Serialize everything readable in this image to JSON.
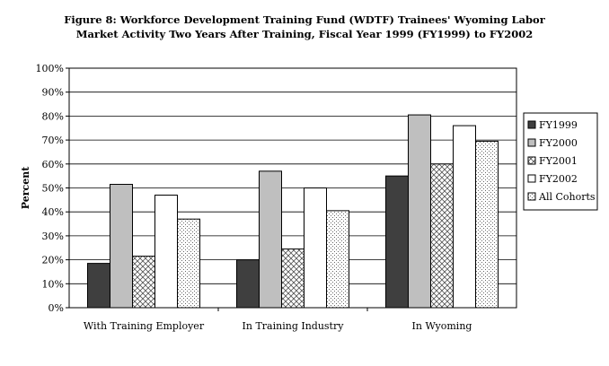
{
  "chart_data": {
    "type": "bar",
    "title_lines": [
      "Figure 8: Workforce Development Training Fund (WDTF) Trainees' Wyoming Labor",
      "Market Activity Two Years After Training, Fiscal Year 1999 (FY1999) to FY2002"
    ],
    "ylabel": "Percent",
    "xlabel": "",
    "ylim": [
      0,
      100
    ],
    "yticks": [
      "0%",
      "10%",
      "20%",
      "30%",
      "40%",
      "50%",
      "60%",
      "70%",
      "80%",
      "90%",
      "100%"
    ],
    "grid": true,
    "legend_position": "right",
    "categories": [
      "With Training Employer",
      "In Training Industry",
      "In Wyoming"
    ],
    "series": [
      {
        "name": "FY1999",
        "values": [
          18.5,
          20,
          55
        ],
        "color": "#3f3f3f",
        "pattern": "solid"
      },
      {
        "name": "FY2000",
        "values": [
          51.5,
          57,
          80.5
        ],
        "color": "#bfbfbf",
        "pattern": "solid"
      },
      {
        "name": "FY2001",
        "values": [
          21.5,
          24.5,
          60
        ],
        "color": "#ffffff",
        "pattern": "crosshatch"
      },
      {
        "name": "FY2002",
        "values": [
          47,
          50,
          76
        ],
        "color": "#ffffff",
        "pattern": "solid"
      },
      {
        "name": "All Cohorts",
        "values": [
          37,
          40.5,
          69.5
        ],
        "color": "#ffffff",
        "pattern": "dotted"
      }
    ]
  }
}
